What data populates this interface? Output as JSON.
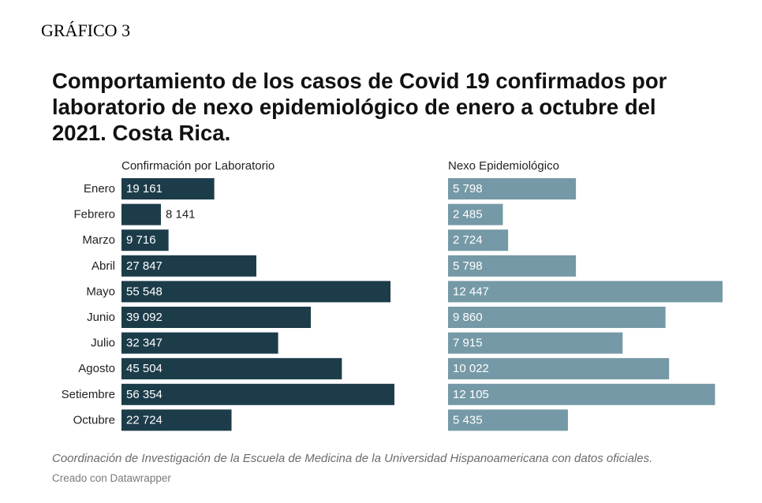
{
  "figure_label": "GRÁFICO 3",
  "title": "Comportamiento de los casos de Covid 19 confirmados por laboratorio de nexo epidemiológico de enero a octubre del 2021. Costa Rica.",
  "source": "Coordinación de Investigación de la Escuela de Medicina de la Universidad Hispanoamericana con datos oficiales.",
  "credit": "Creado con Datawrapper",
  "colors": {
    "lab": "#1c3c4a",
    "nexo": "#7599a6",
    "label_inside": "#ffffff",
    "label_outside": "#222222"
  },
  "chart_data": {
    "type": "bar",
    "orientation": "horizontal",
    "categories": [
      "Enero",
      "Febrero",
      "Marzo",
      "Abril",
      "Mayo",
      "Junio",
      "Julio",
      "Agosto",
      "Setiembre",
      "Octubre"
    ],
    "series": [
      {
        "name": "Confirmación por Laboratorio",
        "values": [
          19161,
          8141,
          9716,
          27847,
          55548,
          39092,
          32347,
          45504,
          56354,
          22724
        ],
        "labels": [
          "19 161",
          "8 141",
          "9 716",
          "27 847",
          "55 548",
          "39 092",
          "32 347",
          "45 504",
          "56 354",
          "22 724"
        ]
      },
      {
        "name": "Nexo Epidemiológico",
        "values": [
          5798,
          2485,
          2724,
          5798,
          12447,
          9860,
          7915,
          10022,
          12105,
          5435
        ],
        "labels": [
          "5 798",
          "2 485",
          "2 724",
          "5 798",
          "12 447",
          "9 860",
          "7 915",
          "10 022",
          "12 105",
          "5 435"
        ]
      }
    ],
    "grid": false,
    "legend": "column headers"
  }
}
